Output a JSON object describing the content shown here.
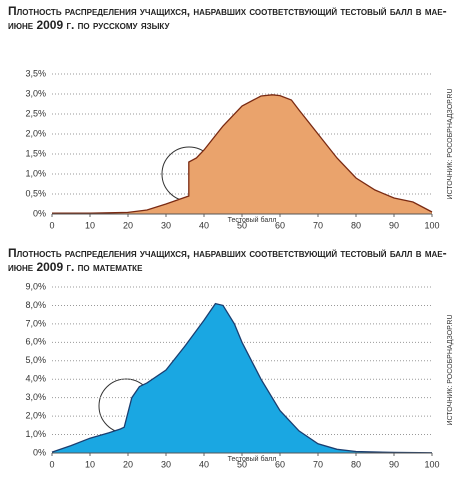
{
  "chart_data": [
    {
      "type": "area",
      "title": "Плотность распределения учащихся, набравших соответствующий тестовый балл в мае-июне 2009 г. по русскому языку",
      "xlabel": "Тестовый балл",
      "source": "ИСТОЧНИК: РОСОБРНАДЗОР.RU",
      "x": [
        0,
        5,
        10,
        15,
        20,
        25,
        30,
        33,
        36,
        36,
        38,
        40,
        45,
        50,
        55,
        58,
        60,
        63,
        65,
        70,
        75,
        80,
        85,
        90,
        95,
        98,
        100
      ],
      "values": [
        0.02,
        0.02,
        0.02,
        0.03,
        0.04,
        0.1,
        0.25,
        0.35,
        0.45,
        1.3,
        1.4,
        1.6,
        2.2,
        2.7,
        2.95,
        2.98,
        2.96,
        2.85,
        2.6,
        2.0,
        1.4,
        0.9,
        0.6,
        0.4,
        0.3,
        0.15,
        0.05
      ],
      "color": "#eaa36c",
      "line_color": "#7a2a12",
      "xlim": [
        0,
        100
      ],
      "xticks": [
        0,
        10,
        20,
        30,
        40,
        50,
        60,
        70,
        80,
        90,
        100
      ],
      "ylim": [
        0,
        3.5
      ],
      "yticks": [
        {
          "value": 0,
          "label": "0%"
        },
        {
          "value": 0.5,
          "label": "0,5%"
        },
        {
          "value": 1,
          "label": "1,0%"
        },
        {
          "value": 1.5,
          "label": "1,5%"
        },
        {
          "value": 2,
          "label": "2,0%"
        },
        {
          "value": 2.5,
          "label": "2,5%"
        },
        {
          "value": 3,
          "label": "3,0%"
        },
        {
          "value": 3.5,
          "label": "3,5%"
        }
      ],
      "grid": true
    },
    {
      "type": "area",
      "title": "Плотность распределения учащихся, набравших соответствующий тестовый балл в мае-июне 2009 г. по математке",
      "xlabel": "Тестовый балл",
      "source": "ИСТОЧНИК: РОСОБРНАДЗОР.RU",
      "x": [
        0,
        5,
        10,
        15,
        18,
        19,
        21,
        23,
        25,
        30,
        35,
        40,
        43,
        45,
        48,
        50,
        55,
        60,
        65,
        70,
        75,
        80,
        90,
        100
      ],
      "values": [
        0.05,
        0.4,
        0.8,
        1.1,
        1.3,
        1.4,
        3.0,
        3.6,
        3.8,
        4.5,
        5.8,
        7.2,
        8.1,
        8.0,
        7.0,
        6.0,
        4.0,
        2.3,
        1.2,
        0.5,
        0.2,
        0.08,
        0.03,
        0.01
      ],
      "color": "#1aa7e2",
      "line_color": "#1b3e70",
      "xlim": [
        0,
        100
      ],
      "xticks": [
        0,
        10,
        20,
        30,
        40,
        50,
        60,
        70,
        80,
        90,
        100
      ],
      "ylim": [
        0,
        9
      ],
      "yticks": [
        {
          "value": 0,
          "label": "0%"
        },
        {
          "value": 1,
          "label": "1,0%"
        },
        {
          "value": 2,
          "label": "2,0%"
        },
        {
          "value": 3,
          "label": "3,0%"
        },
        {
          "value": 4,
          "label": "4,0%"
        },
        {
          "value": 5,
          "label": "5,0%"
        },
        {
          "value": 6,
          "label": "6,0%"
        },
        {
          "value": 7,
          "label": "7,0%"
        },
        {
          "value": 8,
          "label": "8,0%"
        },
        {
          "value": 9,
          "label": "9,0%"
        }
      ],
      "grid": true
    }
  ]
}
